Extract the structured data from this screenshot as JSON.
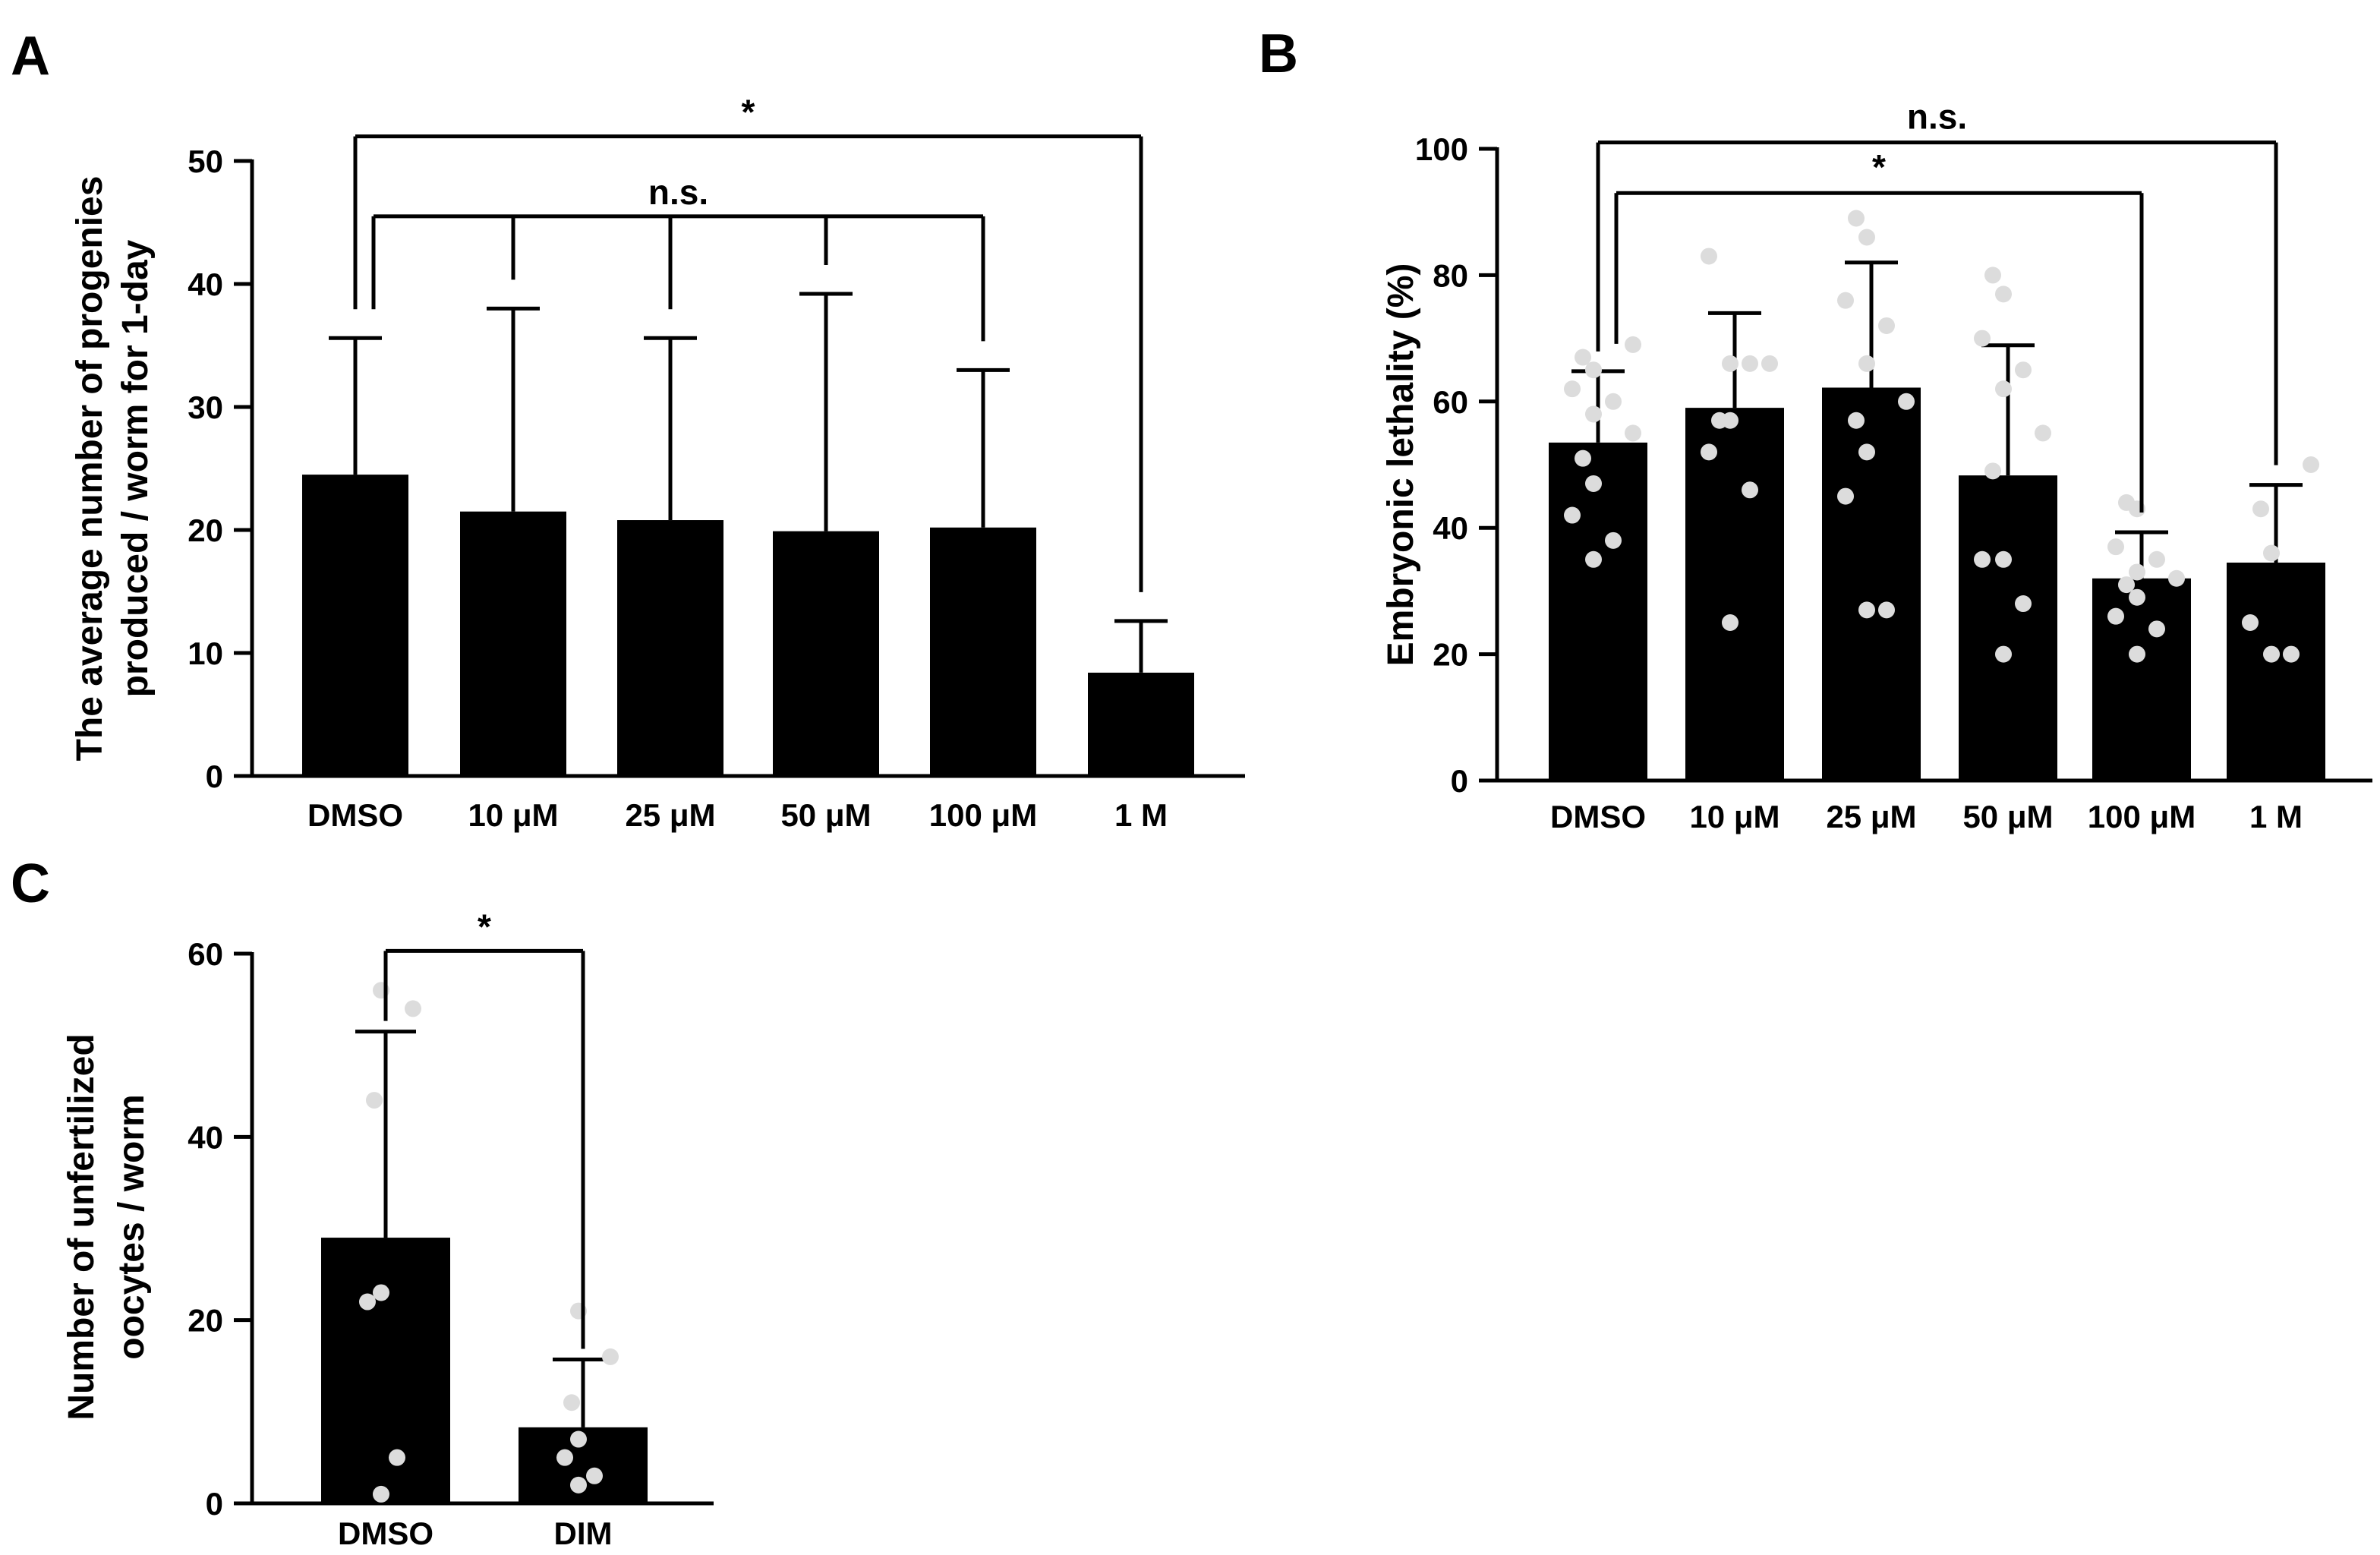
{
  "chart_data": [
    {
      "panel": "A",
      "type": "bar",
      "ylabel": [
        "The average number of progenies",
        "produced / worm for 1-day"
      ],
      "ylim": [
        0,
        50
      ],
      "yticks": [
        0,
        10,
        20,
        30,
        40,
        50
      ],
      "categories": [
        "DMSO",
        "10 μM",
        "25 μM",
        "50 μM",
        "100 μM",
        "1 M"
      ],
      "values": [
        24.5,
        21.5,
        20.8,
        19.9,
        20.2,
        8.4
      ],
      "errors": [
        11.1,
        16.5,
        14.8,
        19.3,
        12.8,
        4.2
      ],
      "significance": [
        {
          "label": "*",
          "from": 0,
          "to": [
            5
          ],
          "level": 52
        },
        {
          "label": "n.s.",
          "from": 0,
          "to": [
            1,
            2,
            3,
            4
          ],
          "level": 45.5
        }
      ]
    },
    {
      "panel": "B",
      "type": "bar",
      "ylabel": [
        "Embryonic lethality (%)"
      ],
      "ylim": [
        0,
        100
      ],
      "yticks": [
        0,
        20,
        40,
        60,
        80,
        100
      ],
      "categories": [
        "DMSO",
        "10 μM",
        "25 μM",
        "50 μM",
        "100 μM",
        "1 M"
      ],
      "values": [
        53.5,
        59,
        62.2,
        48.3,
        32,
        34.5
      ],
      "errors": [
        11.3,
        15,
        19.8,
        20.6,
        7.3,
        12.3
      ],
      "points": [
        [
          35,
          38,
          42,
          47,
          51,
          55,
          58,
          60,
          62,
          65,
          67,
          69
        ],
        [
          25,
          46,
          52,
          57,
          57,
          66,
          66,
          66,
          83
        ],
        [
          27,
          27,
          45,
          52,
          57,
          60,
          66,
          72,
          76,
          86,
          89
        ],
        [
          20,
          28,
          35,
          35,
          49,
          55,
          62,
          65,
          70,
          77,
          80
        ],
        [
          20,
          24,
          26,
          29,
          31,
          32,
          33,
          35,
          37,
          43,
          44
        ],
        [
          20,
          20,
          25,
          36,
          43,
          50
        ]
      ],
      "significance": [
        {
          "label": "n.s.",
          "from": 0,
          "to": [
            5
          ],
          "level": 101
        },
        {
          "label": "*",
          "from": 0,
          "to": [
            4
          ],
          "level": 93
        }
      ]
    },
    {
      "panel": "C",
      "type": "bar",
      "ylabel": [
        "Number of unfertilized",
        "oocytes / worm"
      ],
      "ylim": [
        0,
        60
      ],
      "yticks": [
        0,
        20,
        40,
        60
      ],
      "categories": [
        "DMSO",
        "DIM"
      ],
      "values": [
        29,
        8.3
      ],
      "errors": [
        22.5,
        7.4
      ],
      "points": [
        [
          1,
          5,
          22,
          23,
          44,
          54,
          56
        ],
        [
          2,
          3,
          5,
          7,
          11,
          16,
          21
        ]
      ],
      "significance": [
        {
          "label": "*",
          "from": 0,
          "to": [
            1
          ],
          "level": 60.3
        }
      ]
    }
  ],
  "style": {
    "bar_color": "#000000",
    "point_color": "#dcdcdc"
  }
}
